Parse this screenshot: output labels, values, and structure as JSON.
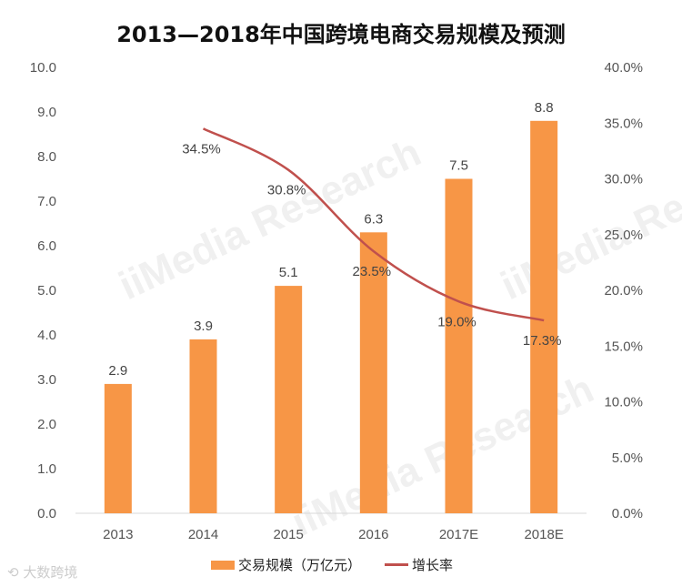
{
  "chart_data": {
    "type": "bar+line",
    "title": "2013—2018年中国跨境电商交易规模及预测",
    "categories": [
      "2013",
      "2014",
      "2015",
      "2016",
      "2017E",
      "2018E"
    ],
    "series": [
      {
        "name": "交易规模（万亿元）",
        "type": "bar",
        "axis": "left",
        "values": [
          2.9,
          3.9,
          5.1,
          6.3,
          7.5,
          8.8
        ],
        "labels": [
          "2.9",
          "3.9",
          "5.1",
          "6.3",
          "7.5",
          "8.8"
        ],
        "color": "#F79646"
      },
      {
        "name": "增长率",
        "type": "line",
        "axis": "right",
        "smooth": true,
        "values": [
          null,
          34.5,
          30.8,
          23.5,
          19.0,
          17.3
        ],
        "labels": [
          null,
          "34.5%",
          "30.8%",
          "23.5%",
          "19.0%",
          "17.3%"
        ],
        "color": "#C0504D"
      }
    ],
    "left_axis": {
      "range": [
        0,
        10
      ],
      "ticks": [
        "0.0",
        "1.0",
        "2.0",
        "3.0",
        "4.0",
        "5.0",
        "6.0",
        "7.0",
        "8.0",
        "9.0",
        "10.0"
      ]
    },
    "right_axis": {
      "range": [
        0,
        40
      ],
      "ticks": [
        "0.0%",
        "5.0%",
        "10.0%",
        "15.0%",
        "20.0%",
        "25.0%",
        "30.0%",
        "35.0%",
        "40.0%"
      ]
    },
    "grid": false,
    "legend_position": "bottom"
  },
  "legend": {
    "bar_label": "交易规模（万亿元）",
    "line_label": "增长率"
  },
  "watermarks": {
    "logo_text": "大数跨境",
    "brand": "iiMedia Research"
  }
}
